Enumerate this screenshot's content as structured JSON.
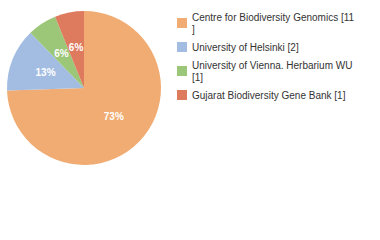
{
  "chart_data": {
    "type": "pie",
    "categories": [
      "Centre for Biodiversity Genomics [11]",
      "University of Helsinki [2]",
      "University of Vienna. Herbarium WU [1]",
      "Gujarat Biodiversity Gene Bank [1]"
    ],
    "values": [
      73,
      13,
      6,
      6
    ],
    "value_labels": [
      "73%",
      "13%",
      "6%",
      "6%"
    ],
    "colors": [
      "#f0ac72",
      "#a3bde2",
      "#9cc678",
      "#de7a5e"
    ],
    "data_labels": true,
    "legend": "right"
  }
}
